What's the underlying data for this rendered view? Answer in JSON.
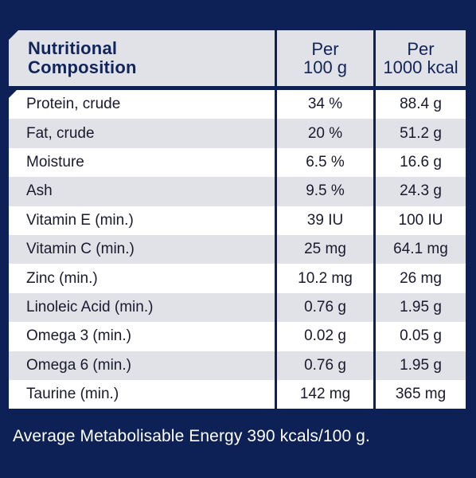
{
  "header": {
    "title_line1": "Nutritional",
    "title_line2": "Composition",
    "per100_line1": "Per",
    "per100_line2": "100 g",
    "per1000_line1": "Per",
    "per1000_line2": "1000 kcal"
  },
  "rows": [
    {
      "name": "Protein, crude",
      "per100": "34 %",
      "per1000": "88.4 g"
    },
    {
      "name": "Fat, crude",
      "per100": "20 %",
      "per1000": "51.2 g"
    },
    {
      "name": "Moisture",
      "per100": "6.5 %",
      "per1000": "16.6 g"
    },
    {
      "name": "Ash",
      "per100": "9.5 %",
      "per1000": "24.3 g"
    },
    {
      "name": "Vitamin E (min.)",
      "per100": "39 IU",
      "per1000": "100 IU"
    },
    {
      "name": "Vitamin C (min.)",
      "per100": "25 mg",
      "per1000": "64.1 mg"
    },
    {
      "name": "Zinc (min.)",
      "per100": "10.2 mg",
      "per1000": "26 mg"
    },
    {
      "name": "Linoleic Acid (min.)",
      "per100": "0.76 g",
      "per1000": "1.95 g"
    },
    {
      "name": "Omega 3 (min.)",
      "per100": "0.02 g",
      "per1000": "0.05 g"
    },
    {
      "name": "Omega 6 (min.)",
      "per100": "0.76 g",
      "per1000": "1.95 g"
    },
    {
      "name": "Taurine (min.)",
      "per100": "142 mg",
      "per1000": "365 mg"
    }
  ],
  "footer": "Average Metabolisable Energy 390 kcals/100 g.",
  "colors": {
    "background": "#0e2156",
    "header_text": "#12255a",
    "row_grey": "#e1e2e7",
    "row_white": "#ffffff"
  }
}
